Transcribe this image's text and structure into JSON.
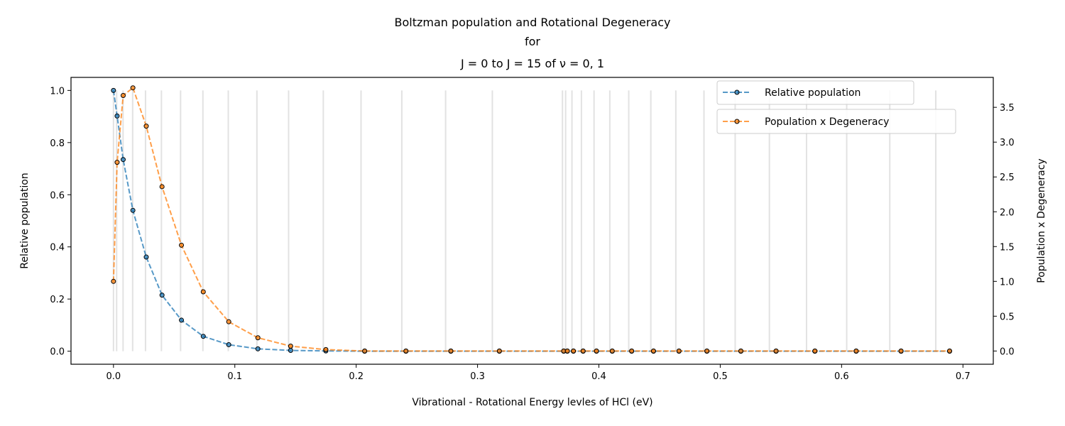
{
  "chart_data": {
    "type": "line",
    "title": [
      "Boltzman population and Rotational Degeneracy",
      "for",
      "J = 0 to J = 15 of ν = 0, 1"
    ],
    "xlabel": "Vibrational - Rotational Energy levles of HCl (eV)",
    "ylabel": "Relative population",
    "y2label": "Population x Degeneracy",
    "xlim": [
      -0.035,
      0.725
    ],
    "ylim": [
      -0.05,
      1.05
    ],
    "y2lim": [
      -0.19,
      3.93
    ],
    "xticks": [
      0.0,
      0.1,
      0.2,
      0.3,
      0.4,
      0.5,
      0.6,
      0.7
    ],
    "xtick_labels": [
      "0.0",
      "0.1",
      "0.2",
      "0.3",
      "0.4",
      "0.5",
      "0.6",
      "0.7"
    ],
    "yticks": [
      0.0,
      0.2,
      0.4,
      0.6,
      0.8,
      1.0
    ],
    "ytick_labels": [
      "0.0",
      "0.2",
      "0.4",
      "0.6",
      "0.8",
      "1.0"
    ],
    "y2ticks": [
      0.0,
      0.5,
      1.0,
      1.5,
      2.0,
      2.5,
      3.0,
      3.5
    ],
    "y2tick_labels": [
      "0.0",
      "0.5",
      "1.0",
      "1.5",
      "2.0",
      "2.5",
      "3.0",
      "3.5"
    ],
    "legend_placement": "top-right",
    "energy_levels": [
      0.0,
      0.0026,
      0.0079,
      0.0158,
      0.0264,
      0.0395,
      0.0553,
      0.0737,
      0.0946,
      0.1182,
      0.1443,
      0.1729,
      0.204,
      0.2376,
      0.2737,
      0.3122,
      0.37,
      0.3726,
      0.3778,
      0.3856,
      0.396,
      0.409,
      0.4246,
      0.4428,
      0.4634,
      0.4866,
      0.5123,
      0.5405,
      0.5711,
      0.6042,
      0.6397,
      0.6776
    ],
    "series": [
      {
        "name": "Relative population",
        "axis": "left",
        "color": "#1f77b4",
        "x": [
          0.0,
          0.003,
          0.008,
          0.016,
          0.027,
          0.04,
          0.056,
          0.074,
          0.095,
          0.119,
          0.146,
          0.175,
          0.207,
          0.241,
          0.278,
          0.318,
          0.371,
          0.374,
          0.379,
          0.387,
          0.398,
          0.411,
          0.427,
          0.445,
          0.466,
          0.489,
          0.517,
          0.546,
          0.578,
          0.612,
          0.649,
          0.689
        ],
        "values": [
          1.0,
          0.902,
          0.735,
          0.54,
          0.361,
          0.215,
          0.119,
          0.057,
          0.025,
          0.009,
          0.003,
          0.001,
          0.0,
          0.0,
          0.0,
          0.0,
          0.0,
          0.0,
          0.0,
          0.0,
          0.0,
          0.0,
          0.0,
          0.0,
          0.0,
          0.0,
          0.0,
          0.0,
          0.0,
          0.0,
          0.0,
          0.0
        ]
      },
      {
        "name": "Population x Degeneracy",
        "axis": "right",
        "color": "#ff7f0e",
        "x": [
          0.0,
          0.003,
          0.008,
          0.016,
          0.027,
          0.04,
          0.056,
          0.074,
          0.095,
          0.119,
          0.146,
          0.175,
          0.207,
          0.241,
          0.278,
          0.318,
          0.371,
          0.374,
          0.379,
          0.387,
          0.398,
          0.411,
          0.427,
          0.445,
          0.466,
          0.489,
          0.517,
          0.546,
          0.578,
          0.612,
          0.649,
          0.689
        ],
        "values": [
          1.0,
          2.71,
          3.67,
          3.78,
          3.23,
          2.36,
          1.52,
          0.85,
          0.42,
          0.19,
          0.07,
          0.02,
          0.0,
          0.0,
          0.0,
          0.0,
          0.0,
          0.0,
          0.0,
          0.0,
          0.0,
          0.0,
          0.0,
          0.0,
          0.0,
          0.0,
          0.0,
          0.0,
          0.0,
          0.0,
          0.0,
          0.0
        ]
      }
    ]
  }
}
